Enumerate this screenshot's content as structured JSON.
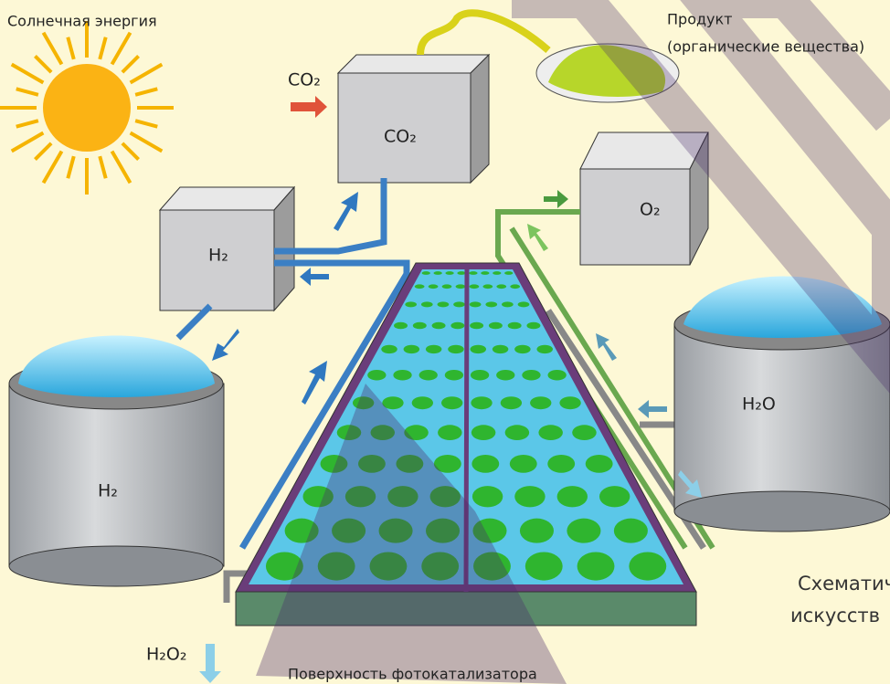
{
  "labels": {
    "solar_energy": "Солнечная энергия",
    "product": [
      "Продукт",
      "(органические вещества)"
    ],
    "co2_input": "CO₂",
    "co2_box": "CO₂",
    "h2_box": "H₂",
    "o2_box": "O₂",
    "h2_tank": "H₂",
    "h2o_tank": "H₂O",
    "h2o2": "H₂O₂",
    "surface": "Поверхность фотокатализатора"
  },
  "caption": [
    "Схематич",
    "искусств"
  ]
}
